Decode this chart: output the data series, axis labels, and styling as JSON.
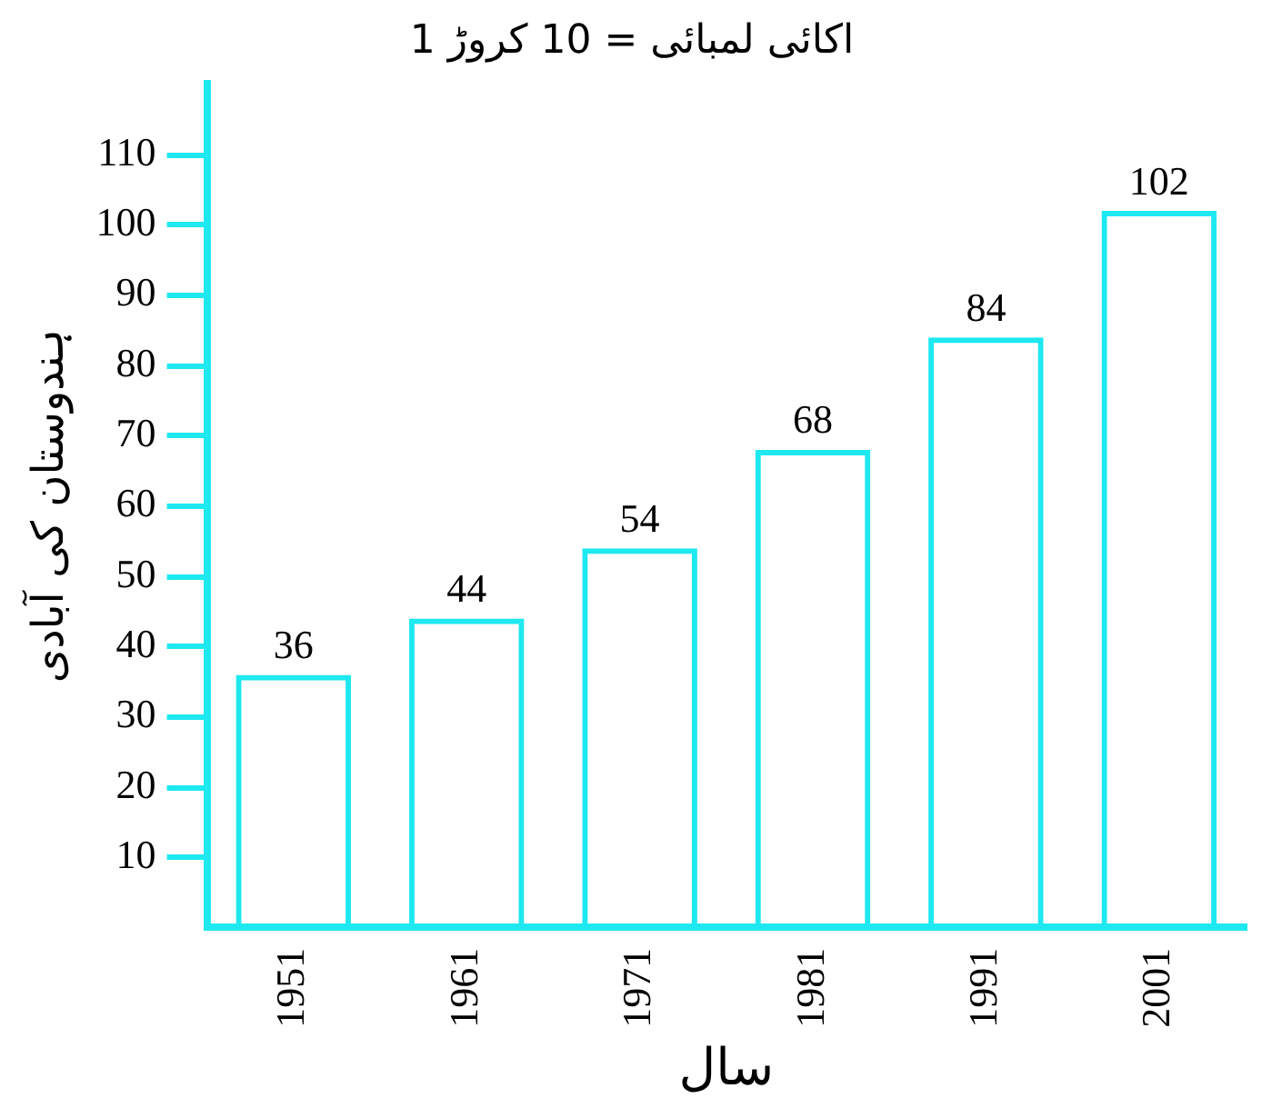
{
  "chart_data": {
    "type": "bar",
    "title": "1 اکائی لمبائی = 10 کروڑ",
    "xlabel": "سال",
    "ylabel": "ہندوستان کی آبادی",
    "categories": [
      "1951",
      "1961",
      "1971",
      "1981",
      "1991",
      "2001"
    ],
    "values": [
      36,
      44,
      54,
      68,
      84,
      102
    ],
    "color": "#1ee8f0",
    "ylim": [
      0,
      120
    ],
    "yticks": [
      10,
      20,
      30,
      40,
      50,
      60,
      70,
      80,
      90,
      100,
      110
    ],
    "grid": false,
    "legend": false,
    "data_labels": true
  }
}
